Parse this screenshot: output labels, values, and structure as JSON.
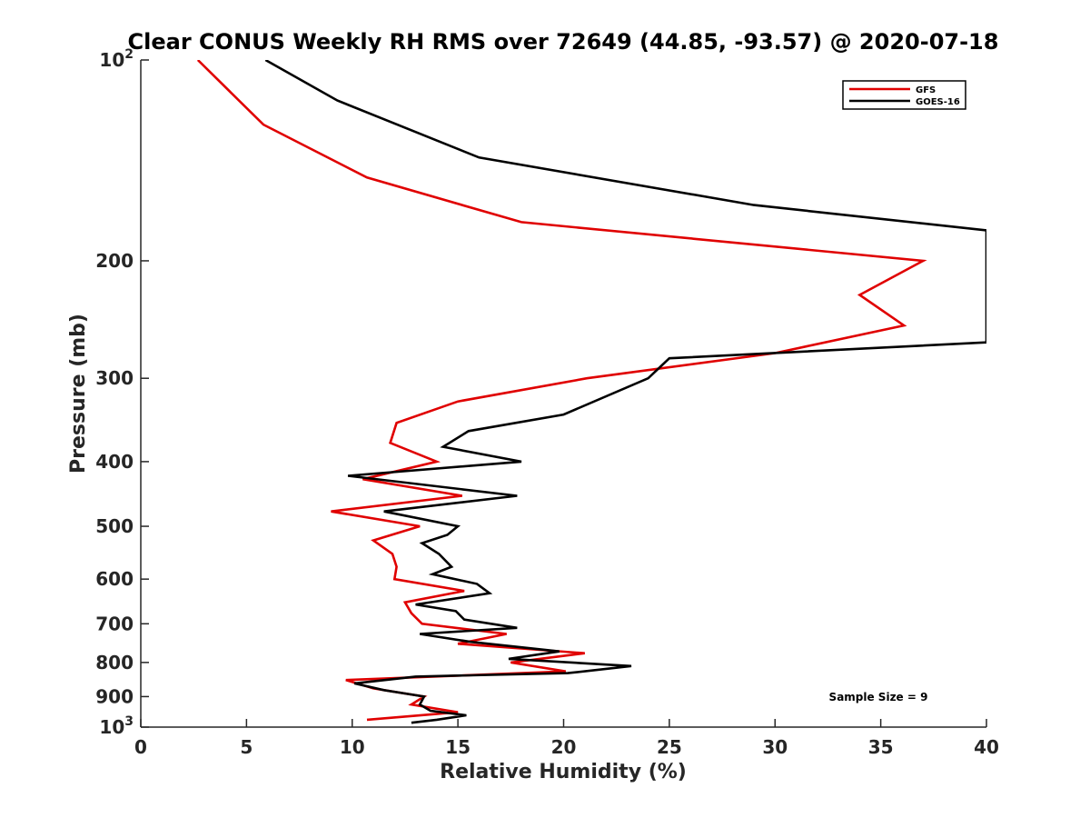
{
  "chart_data": {
    "type": "line",
    "title": "Clear CONUS Weekly RH RMS over 72649 (44.85, -93.57) @ 2020-07-18",
    "xlabel": "Relative Humidity (%)",
    "ylabel": "Pressure (mb)",
    "xlim": [
      0,
      40
    ],
    "ylim": [
      100,
      1000
    ],
    "y_scale": "log",
    "y_reversed": true,
    "grid": false,
    "legend_position": "top-right",
    "x_ticks": [
      "0",
      "5",
      "10",
      "15",
      "20",
      "25",
      "30",
      "35",
      "40"
    ],
    "y_ticks": [
      {
        "value": 100,
        "base": "10",
        "exp": "2"
      },
      {
        "value": 200,
        "label": "200"
      },
      {
        "value": 300,
        "label": "300"
      },
      {
        "value": 400,
        "label": "400"
      },
      {
        "value": 500,
        "label": "500"
      },
      {
        "value": 600,
        "label": "600"
      },
      {
        "value": 700,
        "label": "700"
      },
      {
        "value": 800,
        "label": "800"
      },
      {
        "value": 900,
        "label": "900"
      },
      {
        "value": 1000,
        "base": "10",
        "exp": "3"
      }
    ],
    "series": [
      {
        "name": "GFS",
        "color": "#e00000",
        "points": [
          [
            2.7,
            100
          ],
          [
            5.8,
            125
          ],
          [
            10.7,
            150
          ],
          [
            18.0,
            175
          ],
          [
            37.0,
            200
          ],
          [
            34.0,
            225
          ],
          [
            36.1,
            250
          ],
          [
            30.0,
            275
          ],
          [
            21.1,
            300
          ],
          [
            15.0,
            325
          ],
          [
            12.1,
            350
          ],
          [
            11.8,
            375
          ],
          [
            14.0,
            400
          ],
          [
            10.5,
            425
          ],
          [
            15.2,
            450
          ],
          [
            9.0,
            475
          ],
          [
            13.2,
            500
          ],
          [
            11.0,
            525
          ],
          [
            11.9,
            550
          ],
          [
            12.1,
            575
          ],
          [
            12.0,
            600
          ],
          [
            15.3,
            625
          ],
          [
            12.5,
            650
          ],
          [
            12.8,
            675
          ],
          [
            13.3,
            700
          ],
          [
            17.3,
            725
          ],
          [
            15.0,
            750
          ],
          [
            21.0,
            775
          ],
          [
            17.5,
            800
          ],
          [
            20.1,
            825
          ],
          [
            9.7,
            850
          ],
          [
            11.0,
            875
          ],
          [
            13.4,
            900
          ],
          [
            12.8,
            925
          ],
          [
            15.0,
            950
          ],
          [
            10.7,
            975
          ]
        ]
      },
      {
        "name": "GOES-16",
        "color": "#000000",
        "points": [
          [
            5.9,
            100
          ],
          [
            9.3,
            115
          ],
          [
            16.0,
            140
          ],
          [
            29.0,
            165
          ],
          [
            40.0,
            180
          ],
          [
            40.0,
            265
          ],
          [
            25.0,
            280
          ],
          [
            24.0,
            300
          ],
          [
            20.0,
            340
          ],
          [
            15.5,
            360
          ],
          [
            14.3,
            380
          ],
          [
            18.0,
            400
          ],
          [
            9.8,
            420
          ],
          [
            17.8,
            450
          ],
          [
            11.5,
            475
          ],
          [
            15.0,
            500
          ],
          [
            14.5,
            515
          ],
          [
            13.3,
            530
          ],
          [
            14.1,
            550
          ],
          [
            14.7,
            575
          ],
          [
            13.8,
            590
          ],
          [
            15.9,
            610
          ],
          [
            16.5,
            630
          ],
          [
            13.0,
            655
          ],
          [
            14.9,
            670
          ],
          [
            15.3,
            690
          ],
          [
            17.8,
            710
          ],
          [
            13.2,
            725
          ],
          [
            15.6,
            745
          ],
          [
            19.8,
            770
          ],
          [
            17.4,
            790
          ],
          [
            23.2,
            810
          ],
          [
            20.2,
            830
          ],
          [
            13.0,
            840
          ],
          [
            10.1,
            860
          ],
          [
            11.5,
            880
          ],
          [
            13.4,
            900
          ],
          [
            13.2,
            925
          ],
          [
            13.7,
            945
          ],
          [
            15.4,
            960
          ],
          [
            14.0,
            975
          ],
          [
            12.8,
            985
          ]
        ]
      }
    ],
    "annotation": "Sample Size = 9"
  }
}
